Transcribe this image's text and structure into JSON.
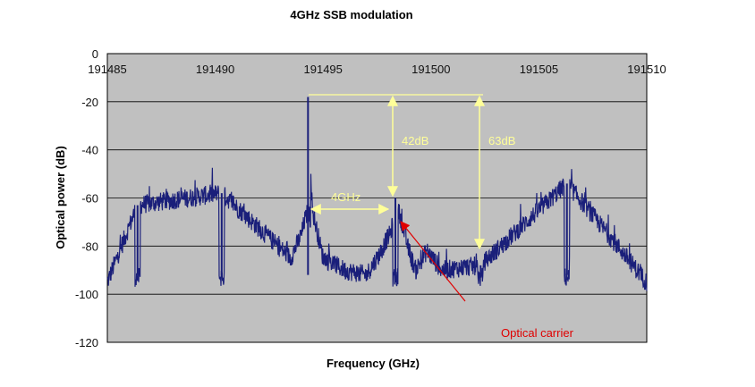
{
  "chart_data": {
    "type": "line",
    "title": "4GHz SSB modulation",
    "xlabel": "Frequency (GHz)",
    "ylabel": "Optical power (dB)",
    "xlim": [
      191485,
      191510
    ],
    "ylim": [
      -120,
      0
    ],
    "x_ticks": [
      "191485",
      "191490",
      "191495",
      "191500",
      "191505",
      "191510"
    ],
    "y_ticks": [
      "0",
      "-20",
      "-40",
      "-60",
      "-80",
      "-100",
      "-120"
    ],
    "grid": true,
    "background_color": "#c0c0c0",
    "series_color": "#1a1f7a",
    "noise_floor": -95,
    "series": [
      {
        "x": [
          191485.0,
          191486.4,
          191490.3,
          191493.5,
          191494.0,
          191494.25,
          191494.3,
          191494.5,
          191495.0,
          191496.0,
          191497.0,
          191497.7,
          191497.9,
          191498.1,
          191498.2,
          191498.35,
          191498.7,
          191499.0,
          191499.3,
          191499.8,
          191500.5,
          191502.3,
          191506.3,
          191510.0
        ],
        "y": [
          -95,
          -63,
          -58,
          -85,
          -75,
          -65,
          -18,
          -65,
          -85,
          -90,
          -92,
          -82,
          -78,
          -75,
          -72,
          -60,
          -72,
          -83,
          -90,
          -82,
          -90,
          -88,
          -54,
          -95
        ]
      }
    ],
    "annotations": {
      "spacing_label": "4GHz",
      "suppression_label_1": "42dB",
      "suppression_label_2": "63dB",
      "carrier_label": "Optical carrier"
    },
    "annotation_color": "#ffff99",
    "carrier_arrow_color": "#e00000"
  }
}
